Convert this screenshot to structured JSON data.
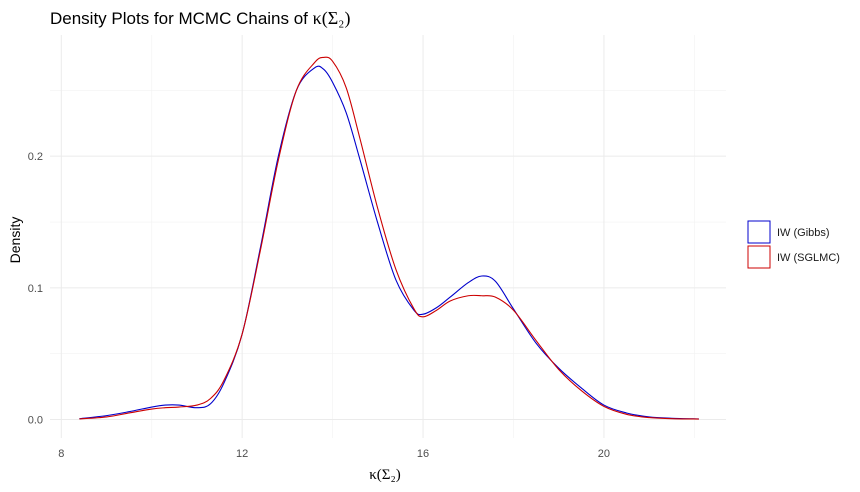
{
  "chart_data": {
    "type": "line",
    "title": "Density Plots for MCMC Chains of κ(Σ₂)",
    "title_text": "Density Plots for MCMC Chains of ",
    "title_math": "κ(Σ₂)",
    "xlabel": "κ(Σ₂)",
    "ylabel": "Density",
    "xlim": [
      7.75,
      22.7
    ],
    "ylim": [
      -0.014,
      0.292
    ],
    "x_ticks": [
      8,
      12,
      16,
      20
    ],
    "y_ticks": [
      0.0,
      0.1,
      0.2
    ],
    "y_tick_labels": [
      "0.0",
      "0.1",
      "0.2"
    ],
    "x_tick_labels": [
      "8",
      "12",
      "16",
      "20"
    ],
    "grid": true,
    "legend_position": "right",
    "series": [
      {
        "name": "IW (Gibbs)",
        "color": "#0000cc",
        "x": [
          8.4,
          9.0,
          9.5,
          10.0,
          10.3,
          10.6,
          11.0,
          11.3,
          11.6,
          12.0,
          12.4,
          12.8,
          13.2,
          13.6,
          13.8,
          14.0,
          14.3,
          14.6,
          15.0,
          15.4,
          15.8,
          16.0,
          16.3,
          16.6,
          17.0,
          17.3,
          17.6,
          18.0,
          18.5,
          19.0,
          19.5,
          20.0,
          20.5,
          21.0,
          21.5,
          22.1
        ],
        "y": [
          0.0007,
          0.003,
          0.006,
          0.0095,
          0.011,
          0.011,
          0.009,
          0.012,
          0.028,
          0.065,
          0.13,
          0.2,
          0.25,
          0.267,
          0.266,
          0.256,
          0.233,
          0.198,
          0.149,
          0.106,
          0.083,
          0.08,
          0.085,
          0.093,
          0.104,
          0.109,
          0.105,
          0.084,
          0.058,
          0.039,
          0.024,
          0.011,
          0.005,
          0.002,
          0.001,
          0.0005
        ]
      },
      {
        "name": "IW (SGLMC)",
        "color": "#cc0000",
        "x": [
          8.4,
          9.0,
          9.5,
          10.0,
          10.3,
          10.6,
          11.0,
          11.3,
          11.6,
          12.0,
          12.4,
          12.8,
          13.2,
          13.6,
          13.8,
          14.0,
          14.3,
          14.6,
          15.0,
          15.4,
          15.8,
          16.0,
          16.3,
          16.6,
          17.0,
          17.3,
          17.6,
          18.0,
          18.5,
          19.0,
          19.5,
          20.0,
          20.5,
          21.0,
          21.5,
          22.1
        ],
        "y": [
          0.0005,
          0.002,
          0.005,
          0.008,
          0.009,
          0.0095,
          0.011,
          0.016,
          0.03,
          0.065,
          0.128,
          0.197,
          0.25,
          0.271,
          0.275,
          0.272,
          0.252,
          0.214,
          0.16,
          0.114,
          0.084,
          0.078,
          0.083,
          0.09,
          0.094,
          0.094,
          0.093,
          0.083,
          0.06,
          0.038,
          0.022,
          0.01,
          0.004,
          0.0015,
          0.0007,
          0.0004
        ]
      }
    ]
  }
}
